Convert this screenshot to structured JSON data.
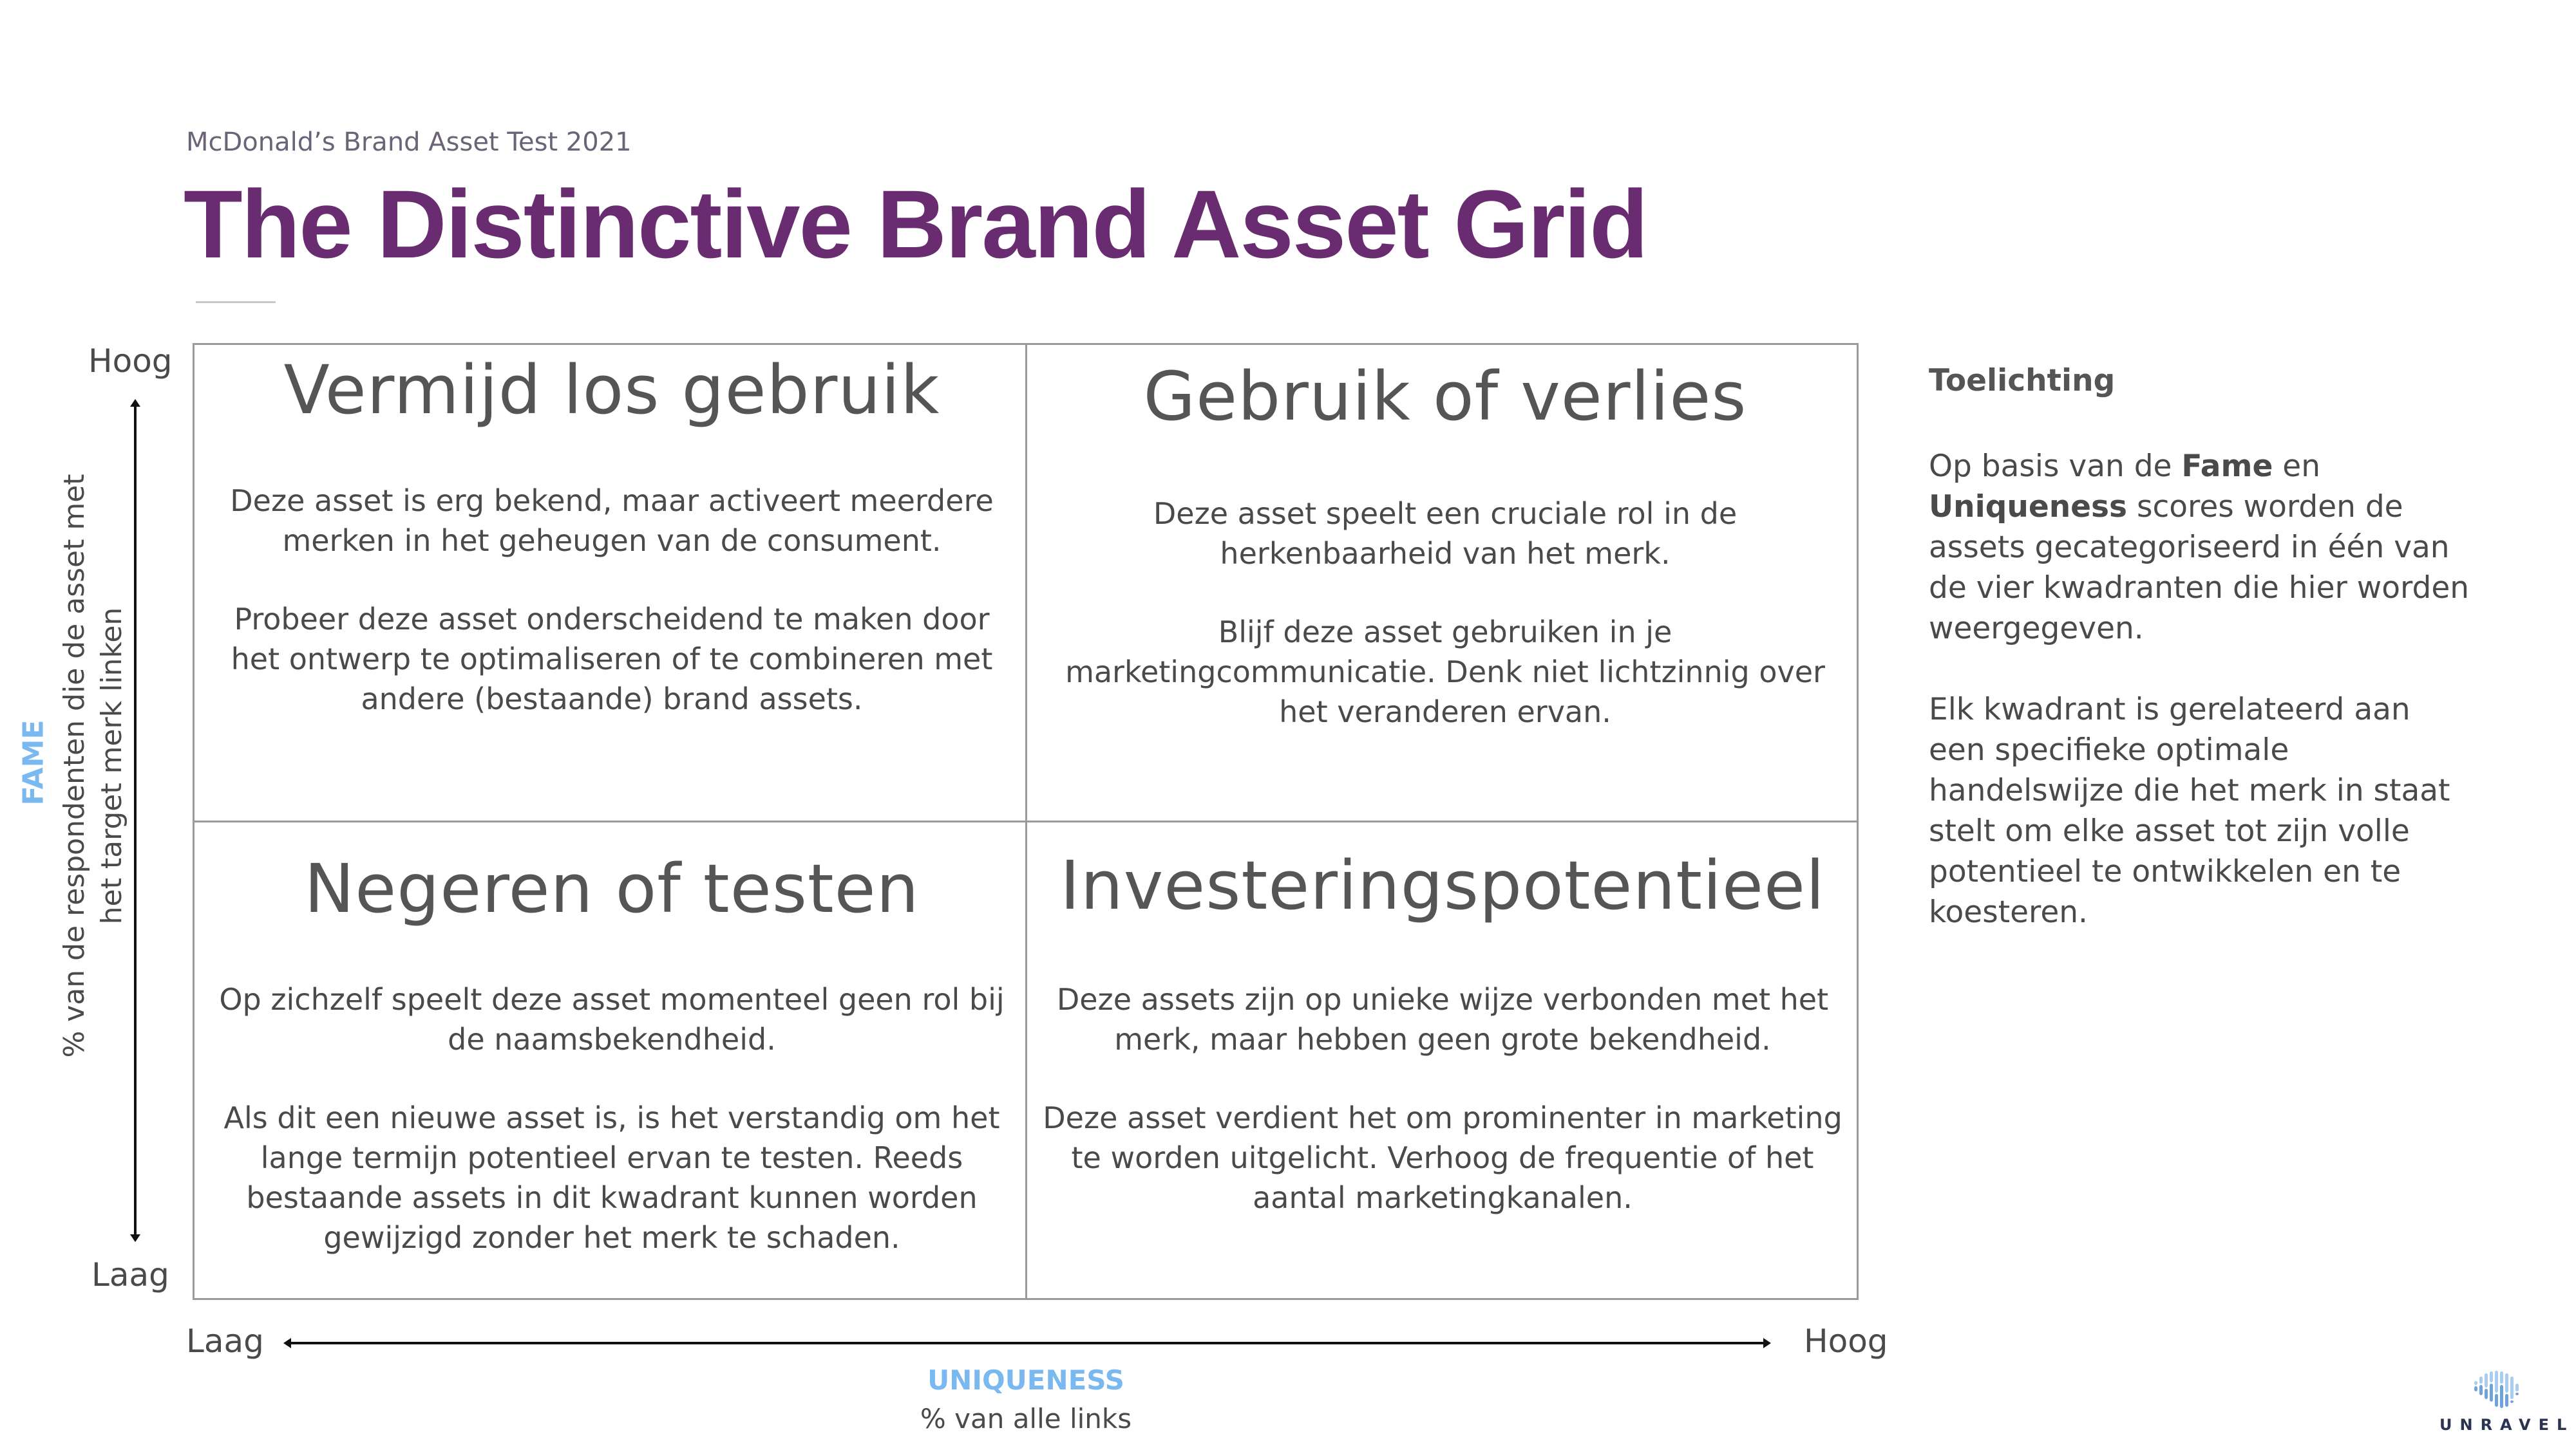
{
  "header": {
    "subtitle": "McDonald’s Brand Asset Test 2021",
    "title": "The Distinctive Brand Asset Grid"
  },
  "y_axis": {
    "high": "Hoog",
    "low": "Laag",
    "name": "FAME",
    "description_line1": "% van de respondenten die de asset met",
    "description_line2": "het target merk linken",
    "color": "#7ab8f0"
  },
  "x_axis": {
    "low": "Laag",
    "high": "Hoog",
    "name": "UNIQUENESS",
    "description": "% van alle links",
    "color": "#7ab8f0"
  },
  "quadrants": [
    {
      "title": "Vermijd los gebruik",
      "paragraphs": [
        "Deze asset is erg bekend, maar activeert meerdere merken in het geheugen van de consument.",
        "Probeer deze asset onderscheidend te maken door het ontwerp te optimaliseren of te combineren met andere (bestaande) brand assets."
      ]
    },
    {
      "title": "Gebruik of verlies",
      "paragraphs": [
        "Deze asset speelt een cruciale rol in de herkenbaarheid van het merk.",
        "Blijf deze asset gebruiken in je marketingcommunicatie. Denk niet lichtzinnig over het veranderen ervan."
      ]
    },
    {
      "title": "Negeren of testen",
      "paragraphs": [
        "Op zichzelf speelt deze asset momenteel geen rol bij de naamsbekendheid.",
        "Als dit een nieuwe asset is, is het verstandig om het lange termijn potentieel ervan te testen. Reeds bestaande assets in dit kwadrant kunnen worden gewijzigd zonder het merk te schaden."
      ]
    },
    {
      "title": "Investeringspotentieel",
      "paragraphs": [
        "Deze assets zijn op unieke wijze verbonden met het merk, maar hebben geen grote bekendheid.",
        "Deze asset verdient het om prominenter in marketing te worden uitgelicht. Verhoog de frequentie of het aantal marketingkanalen."
      ]
    }
  ],
  "panel": {
    "heading": "Toelichting",
    "p1_a": "Op basis van de ",
    "p1_b": "Fame",
    "p1_c": " en ",
    "p1_d": "Uniqueness",
    "p1_e": " scores worden de assets gecategoriseerd in één van de vier kwadranten die hier worden weergegeven.",
    "p2": "Elk kwadrant is gerelateerd aan een specifieke optimale handelswijze die het merk in staat stelt om elke asset tot zijn volle potentieel te ontwikkelen en te koesteren."
  },
  "logo": {
    "text": "UNRAVEL",
    "colors": [
      "#a9cdef",
      "#6fa3dc"
    ]
  },
  "colors": {
    "title": "#6a2c70",
    "text": "#4a4a4a"
  }
}
